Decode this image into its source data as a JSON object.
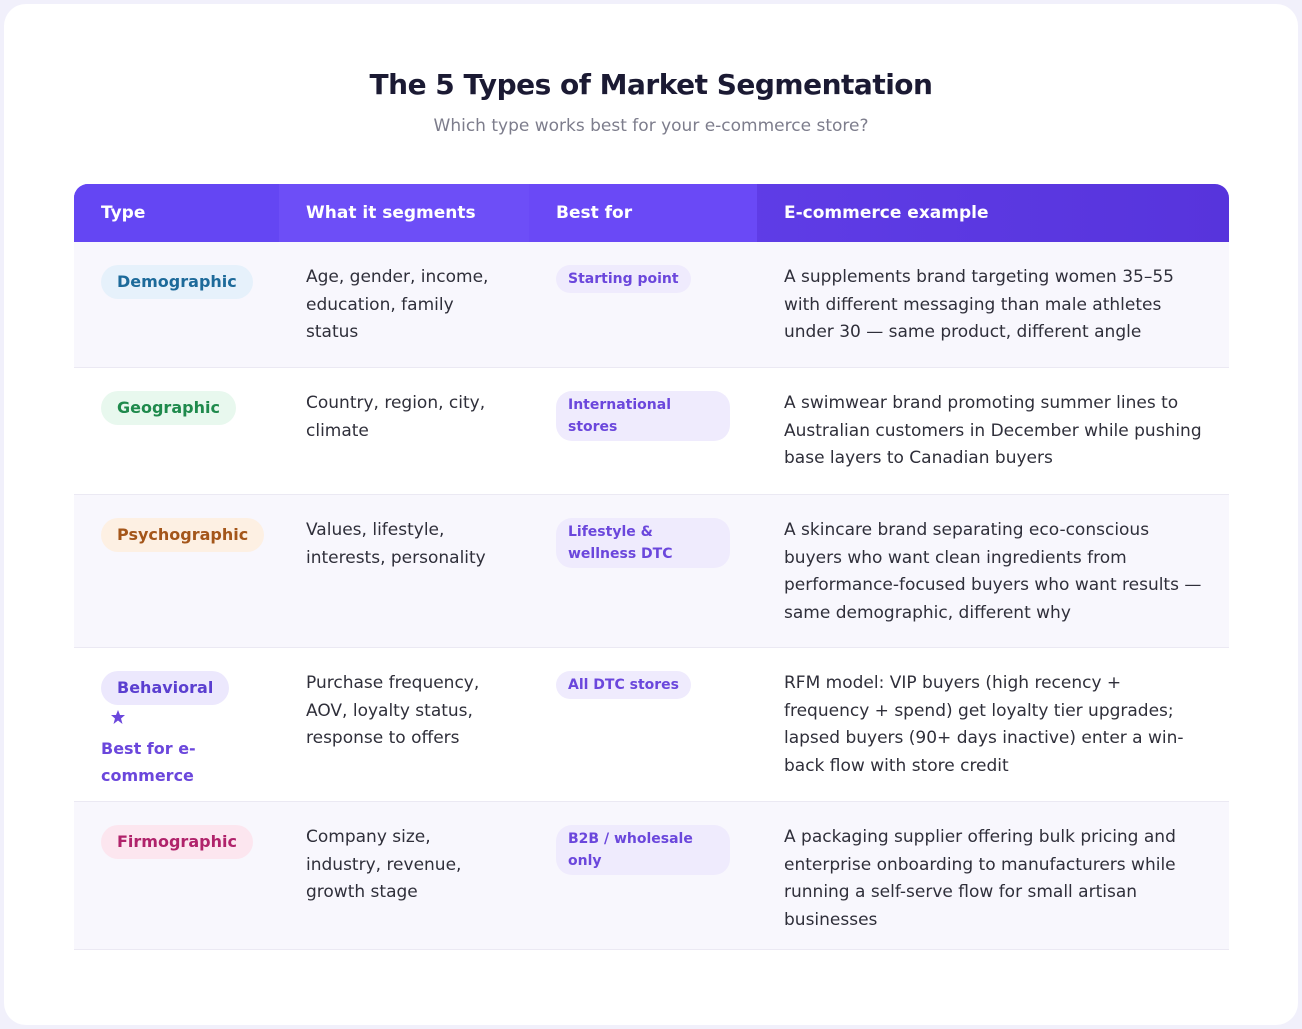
{
  "header": {
    "title": "The 5 Types of Market Segmentation",
    "subtitle": "Which type works best for your e-commerce store?"
  },
  "table": {
    "columns": [
      "Type",
      "What it segments",
      "Best for",
      "E-commerce example"
    ],
    "rows": [
      {
        "type": "Demographic",
        "segments": "Age, gender, income, education, family status",
        "best_for": "Starting point",
        "example": "A supplements brand targeting women 35–55 with different messaging than male athletes under 30 — same product, different angle"
      },
      {
        "type": "Geographic",
        "segments": "Country, region, city, climate",
        "best_for": "International stores",
        "example": "A swimwear brand promoting summer lines to Australian customers in December while pushing base layers to Canadian buyers"
      },
      {
        "type": "Psychographic",
        "segments": "Values, lifestyle, interests, personality",
        "best_for": "Lifestyle & wellness DTC",
        "example": "A skincare brand separating eco-conscious buyers who want clean ingredients from performance-focused buyers who want results — same demographic, different why"
      },
      {
        "type": "Behavioral",
        "note": "Best for e-commerce",
        "segments": "Purchase frequency, AOV, loyalty status, response to offers",
        "best_for": "All DTC stores",
        "example": "RFM model: VIP buyers (high recency + frequency + spend) get loyalty tier upgrades; lapsed buyers (90+ days inactive) enter a win-back flow with store credit"
      },
      {
        "type": "Firmographic",
        "segments": "Company size, industry, revenue, growth stage",
        "best_for": "B2B / wholesale only",
        "example": "A packaging supplier offering bulk pricing and enterprise onboarding to manufacturers while running a self-serve flow for small artisan businesses"
      }
    ]
  }
}
